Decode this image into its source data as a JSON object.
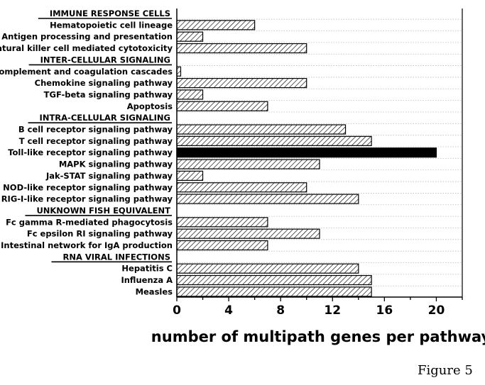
{
  "chart_data": {
    "type": "bar",
    "orientation": "horizontal",
    "xlabel": "number of multipath genes per pathway",
    "xlim": [
      0,
      22
    ],
    "xticks": [
      "0",
      "4",
      "8",
      "12",
      "16",
      "20"
    ],
    "grid": "dotted horizontal",
    "legend": "none",
    "rows": [
      {
        "kind": "section",
        "label": "IMMUNE RESPONSE CELLS"
      },
      {
        "kind": "bar",
        "label": "Hematopoietic cell lineage",
        "value": 6,
        "highlight": false
      },
      {
        "kind": "bar",
        "label": "Antigen processing and presentation",
        "value": 2,
        "highlight": false
      },
      {
        "kind": "bar",
        "label": "Natural killer cell mediated cytotoxicity",
        "value": 10,
        "highlight": false
      },
      {
        "kind": "section",
        "label": "INTER-CELLULAR SIGNALING"
      },
      {
        "kind": "bar",
        "label": "Complement and coagulation cascades",
        "value": 0.3,
        "highlight": false
      },
      {
        "kind": "bar",
        "label": "Chemokine signaling pathway",
        "value": 10,
        "highlight": false
      },
      {
        "kind": "bar",
        "label": "TGF-beta signaling pathway",
        "value": 2,
        "highlight": false
      },
      {
        "kind": "bar",
        "label": "Apoptosis",
        "value": 7,
        "highlight": false
      },
      {
        "kind": "section",
        "label": "INTRA-CELLULAR SIGNALING"
      },
      {
        "kind": "bar",
        "label": "B cell receptor signaling pathway",
        "value": 13,
        "highlight": false
      },
      {
        "kind": "bar",
        "label": "T cell receptor signaling pathway",
        "value": 15,
        "highlight": false
      },
      {
        "kind": "bar",
        "label": "Toll-like receptor signaling pathway",
        "value": 20,
        "highlight": true
      },
      {
        "kind": "bar",
        "label": "MAPK signaling pathway",
        "value": 11,
        "highlight": false
      },
      {
        "kind": "bar",
        "label": "Jak-STAT signaling pathway",
        "value": 2,
        "highlight": false
      },
      {
        "kind": "bar",
        "label": "NOD-like receptor signaling pathway",
        "value": 10,
        "highlight": false
      },
      {
        "kind": "bar",
        "label": "RIG-I-like receptor signaling pathway",
        "value": 14,
        "highlight": false
      },
      {
        "kind": "section",
        "label": "UNKNOWN FISH EQUIVALENT"
      },
      {
        "kind": "bar",
        "label": "Fc gamma R-mediated phagocytosis",
        "value": 7,
        "highlight": false
      },
      {
        "kind": "bar",
        "label": "Fc epsilon RI signaling pathway",
        "value": 11,
        "highlight": false
      },
      {
        "kind": "bar",
        "label": "Intestinal network for IgA production",
        "value": 7,
        "highlight": false
      },
      {
        "kind": "section",
        "label": "RNA VIRAL INFECTIONS"
      },
      {
        "kind": "bar",
        "label": "Hepatitis C",
        "value": 14,
        "highlight": false
      },
      {
        "kind": "bar",
        "label": "Influenza A",
        "value": 15,
        "highlight": false
      },
      {
        "kind": "bar",
        "label": "Measles",
        "value": 15,
        "highlight": false
      }
    ],
    "colors": {
      "bar_fill": "#ffffff",
      "bar_hatch": "#000000",
      "highlight_fill": "#000000",
      "grid": "#bbbbbb",
      "axis": "#000000"
    }
  },
  "figure_caption": "Figure 5"
}
